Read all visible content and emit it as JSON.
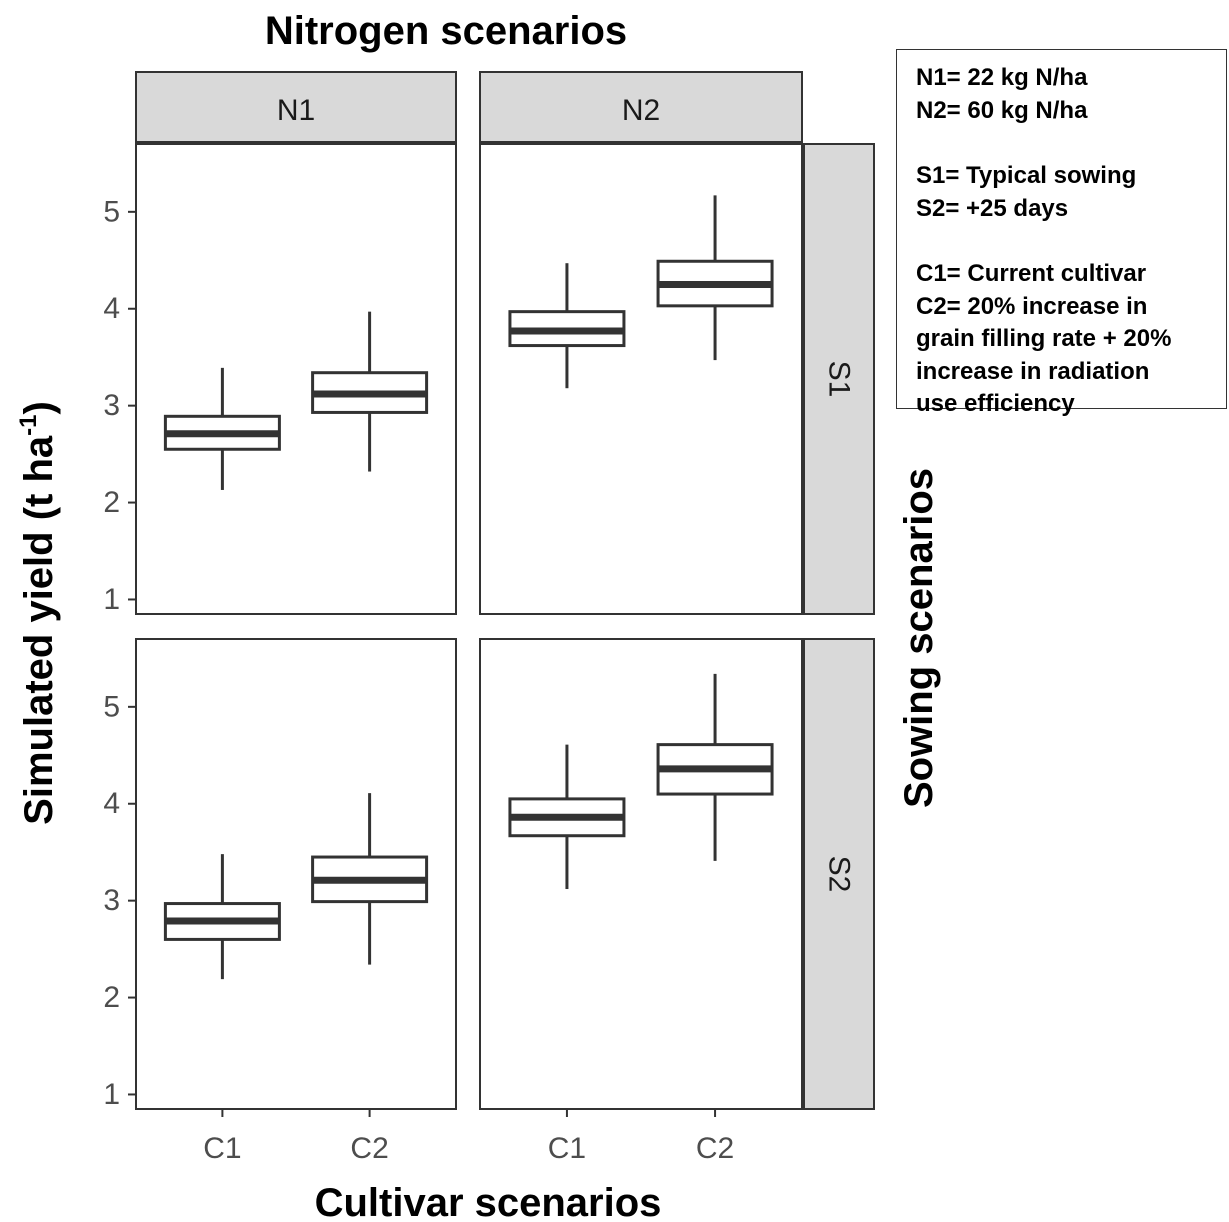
{
  "chart_data": {
    "type": "boxplot",
    "title": "Nitrogen scenarios",
    "xlabel": "Cultivar scenarios",
    "ylabel_main": "Simulated yield (t ha",
    "ylabel_sup": "-1",
    "ylabel_tail": ")",
    "right_label": "Sowing scenarios",
    "col_facets": [
      "N1",
      "N2"
    ],
    "row_facets": [
      "S1",
      "S2"
    ],
    "categories": [
      "C1",
      "C2"
    ],
    "yticks": [
      1,
      2,
      3,
      4,
      5
    ],
    "ylim": [
      0.85,
      5.7
    ],
    "colors": {
      "strip_fill": "#d9d9d9",
      "line": "#333333",
      "tick_text": "#4d4d4d"
    },
    "panels": [
      {
        "row": "S1",
        "col": "N1",
        "boxes": [
          {
            "category": "C1",
            "min": 2.13,
            "q1": 2.55,
            "median": 2.71,
            "q3": 2.89,
            "max": 3.39
          },
          {
            "category": "C2",
            "min": 2.32,
            "q1": 2.93,
            "median": 3.12,
            "q3": 3.34,
            "max": 3.97
          }
        ]
      },
      {
        "row": "S1",
        "col": "N2",
        "boxes": [
          {
            "category": "C1",
            "min": 3.18,
            "q1": 3.62,
            "median": 3.77,
            "q3": 3.97,
            "max": 4.47
          },
          {
            "category": "C2",
            "min": 3.47,
            "q1": 4.03,
            "median": 4.25,
            "q3": 4.49,
            "max": 5.17
          }
        ]
      },
      {
        "row": "S2",
        "col": "N1",
        "boxes": [
          {
            "category": "C1",
            "min": 2.19,
            "q1": 2.6,
            "median": 2.79,
            "q3": 2.97,
            "max": 3.48
          },
          {
            "category": "C2",
            "min": 2.34,
            "q1": 2.99,
            "median": 3.21,
            "q3": 3.45,
            "max": 4.11
          }
        ]
      },
      {
        "row": "S2",
        "col": "N2",
        "boxes": [
          {
            "category": "C1",
            "min": 3.12,
            "q1": 3.67,
            "median": 3.86,
            "q3": 4.05,
            "max": 4.61
          },
          {
            "category": "C2",
            "min": 3.41,
            "q1": 4.1,
            "median": 4.36,
            "q3": 4.61,
            "max": 5.34
          }
        ]
      }
    ]
  },
  "legend": {
    "nitrogen": [
      "N1= 22 kg N/ha",
      "N2= 60 kg N/ha"
    ],
    "sowing": [
      "S1= Typical sowing",
      "S2= +25 days"
    ],
    "cultivar": [
      "C1= Current cultivar",
      "C2= 20% increase in",
      "grain filling rate + 20%",
      "increase in radiation",
      "use efficiency"
    ]
  }
}
